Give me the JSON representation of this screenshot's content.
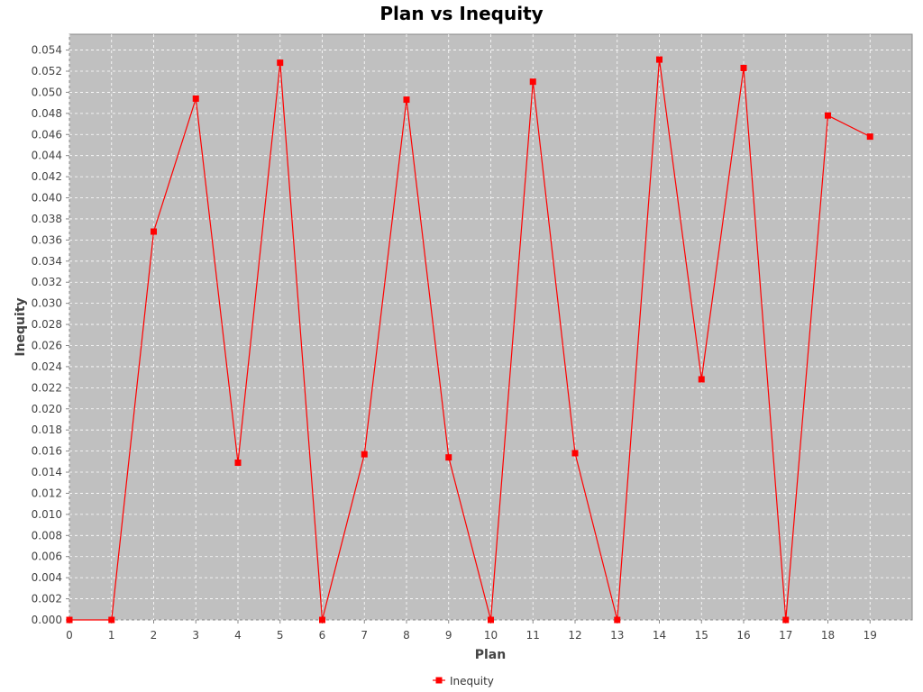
{
  "chart_data": {
    "type": "line",
    "title": "Plan vs Inequity",
    "xlabel": "Plan",
    "ylabel": "Inequity",
    "xlim": [
      0,
      20
    ],
    "ylim": [
      0,
      0.0555
    ],
    "x_ticks": [
      0,
      1,
      2,
      3,
      4,
      5,
      6,
      7,
      8,
      9,
      10,
      11,
      12,
      13,
      14,
      15,
      16,
      17,
      18,
      19
    ],
    "y_ticks": [
      "0.000",
      "0.002",
      "0.004",
      "0.006",
      "0.008",
      "0.010",
      "0.012",
      "0.014",
      "0.016",
      "0.018",
      "0.020",
      "0.022",
      "0.024",
      "0.026",
      "0.028",
      "0.030",
      "0.032",
      "0.034",
      "0.036",
      "0.038",
      "0.040",
      "0.042",
      "0.044",
      "0.046",
      "0.048",
      "0.050",
      "0.052",
      "0.054"
    ],
    "grid": true,
    "legend_position": "bottom-center",
    "series": [
      {
        "name": "Inequity",
        "color": "#ff0000",
        "marker": "square",
        "x": [
          0,
          1,
          2,
          3,
          4,
          5,
          6,
          7,
          8,
          9,
          10,
          11,
          12,
          13,
          14,
          15,
          16,
          17,
          18,
          19
        ],
        "y": [
          0.0,
          0.0,
          0.0368,
          0.0494,
          0.0149,
          0.0528,
          0.0,
          0.0157,
          0.0493,
          0.0154,
          0.0,
          0.051,
          0.0158,
          0.0,
          0.0531,
          0.0228,
          0.0523,
          0.0,
          0.0478,
          0.0458
        ]
      }
    ]
  },
  "colors": {
    "plot_background": "#c0c0c0",
    "gridline": "#ffffff",
    "series": "#ff0000"
  }
}
